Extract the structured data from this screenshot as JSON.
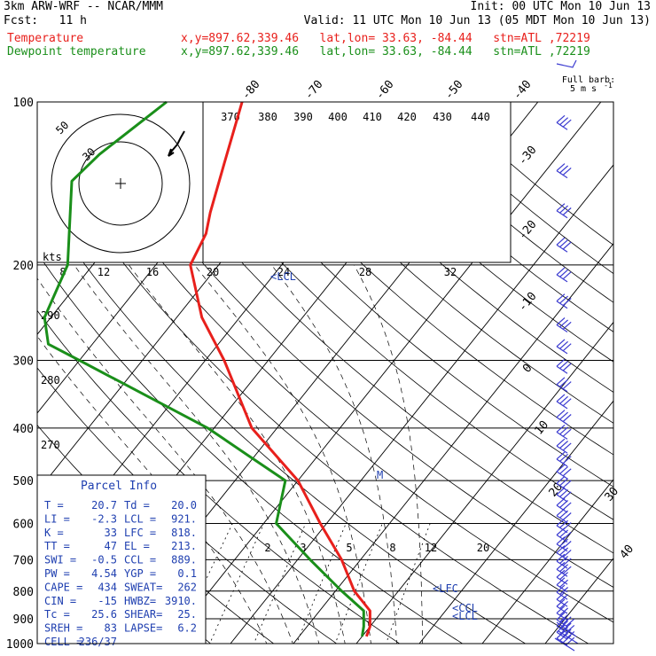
{
  "header": {
    "model": "3km ARW-WRF -- NCAR/MMM",
    "init": "Init: 00 UTC Mon 10 Jun 13",
    "fcst": "Fcst:   11 h",
    "valid": "Valid: 11 UTC Mon 10 Jun 13 (05 MDT Mon 10 Jun 13)",
    "series": [
      {
        "name": "Temperature",
        "info": "x,y=897.62,339.46   lat,lon= 33.63, -84.44   stn=ATL ,72219",
        "color": "#e8201c"
      },
      {
        "name": "Dewpoint temperature",
        "info": "x,y=897.62,339.46   lat,lon= 33.63, -84.44   stn=ATL ,72219",
        "color": "#1a8f1a"
      }
    ]
  },
  "barb_legend": {
    "line1": "Full barb:",
    "line2": "5 m s",
    "sup": "-1"
  },
  "chart_data": {
    "type": "line",
    "title": "",
    "xlabel": "",
    "ylabel": "",
    "pressure_levels": [
      100,
      200,
      300,
      400,
      500,
      600,
      700,
      800,
      900,
      1000
    ],
    "temp_ticks": [
      -80,
      -70,
      -60,
      -50,
      -40,
      -30,
      -20,
      -10,
      0,
      10,
      20,
      30,
      40
    ],
    "theta_labels": [
      "370",
      "380",
      "390",
      "400",
      "410",
      "420",
      "430",
      "440"
    ],
    "theta_left_labels": [
      "290",
      "280",
      "270"
    ],
    "mixing_ratio_labels": [
      "2",
      "3",
      "5",
      "8",
      "12",
      "20"
    ],
    "series": [
      {
        "name": "Temperature",
        "color": "#e8201c",
        "points": [
          [
            100,
            -67
          ],
          [
            130,
            -62
          ],
          [
            160,
            -58
          ],
          [
            175,
            -56
          ],
          [
            200,
            -54.5
          ],
          [
            250,
            -46
          ],
          [
            300,
            -37
          ],
          [
            400,
            -24
          ],
          [
            500,
            -10
          ],
          [
            600,
            -1
          ],
          [
            700,
            7
          ],
          [
            800,
            13
          ],
          [
            870,
            18
          ],
          [
            930,
            20
          ],
          [
            970,
            20.7
          ]
        ]
      },
      {
        "name": "Dewpoint temperature",
        "color": "#1a8f1a",
        "points": [
          [
            100,
            -79
          ],
          [
            125,
            -83
          ],
          [
            140,
            -84
          ],
          [
            200,
            -74
          ],
          [
            250,
            -71
          ],
          [
            280,
            -67
          ],
          [
            300,
            -60
          ],
          [
            400,
            -31
          ],
          [
            450,
            -21
          ],
          [
            500,
            -12
          ],
          [
            600,
            -8
          ],
          [
            700,
            2
          ],
          [
            800,
            11
          ],
          [
            870,
            17
          ],
          [
            930,
            19
          ],
          [
            970,
            20
          ]
        ]
      }
    ],
    "annotations": [
      {
        "text": "LCL",
        "p": 220
      },
      {
        "text": "M",
        "p": 495
      },
      {
        "text": "LFC",
        "p": 818
      },
      {
        "text": "CCL",
        "p": 889
      },
      {
        "text": "LCL",
        "p": 921
      }
    ]
  },
  "hodograph": {
    "rings": [
      "50",
      "30"
    ],
    "axis_label": "kts",
    "ticks": [
      "8",
      "12",
      "16",
      "20",
      "24",
      "28",
      "32"
    ]
  },
  "parcel": {
    "title": "Parcel Info",
    "rows": [
      [
        "T  =",
        "20.7",
        "Td =",
        "20.0"
      ],
      [
        "LI =",
        "-2.3",
        "LCL =",
        "921."
      ],
      [
        "K  =",
        "33",
        "LFC =",
        "818."
      ],
      [
        "TT =",
        "47",
        "EL  =",
        "213."
      ],
      [
        "SWI =",
        "-0.5",
        "CCL =",
        "889."
      ],
      [
        "PW =",
        "4.54",
        "YGP =",
        "0.1"
      ],
      [
        "CAPE =",
        "434",
        "SWEAT=",
        "262"
      ],
      [
        "CIN =",
        "-15",
        "HWBZ=",
        "3910."
      ],
      [
        "Tc =",
        "25.6",
        "SHEAR=",
        "25."
      ],
      [
        "SREH =",
        "83",
        "LAPSE=",
        "6.2"
      ],
      [
        "CELL =",
        "236/37",
        "",
        ""
      ]
    ]
  }
}
